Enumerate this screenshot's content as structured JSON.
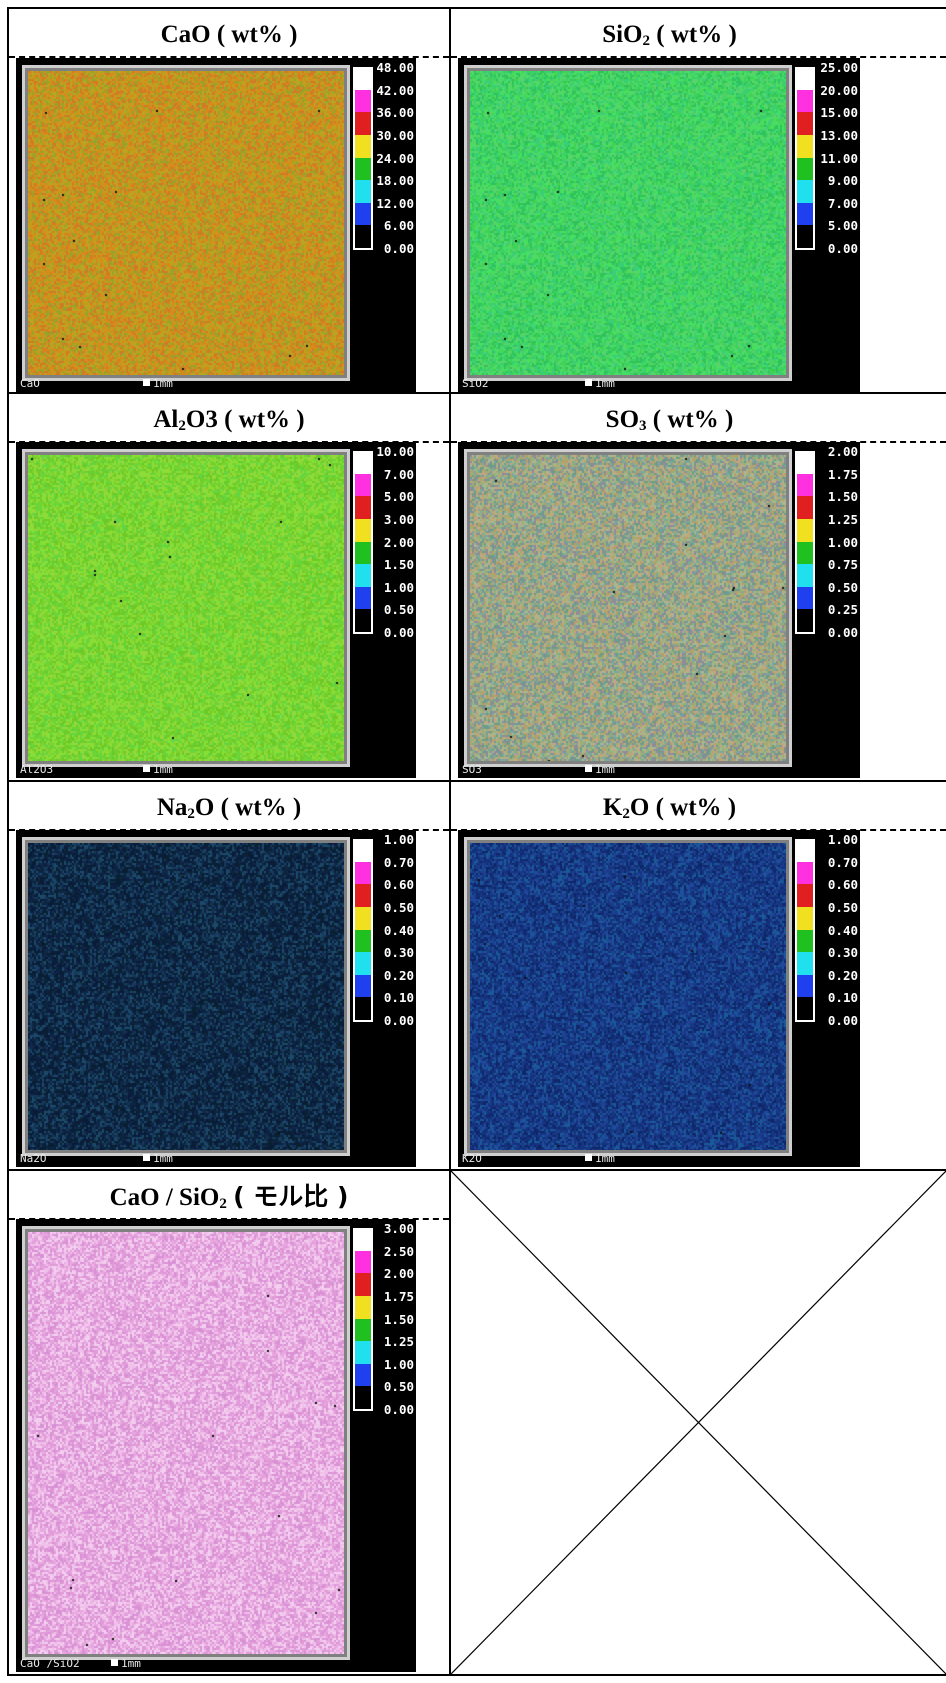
{
  "panels": [
    {
      "title_main": "CaO",
      "title_sub": "",
      "title_tail": "",
      "title_unit": "( wt% )",
      "image_label": "CaO",
      "scale_bar": "1mm",
      "colorbar": [
        "48.00",
        "42.00",
        "36.00",
        "30.00",
        "24.00",
        "18.00",
        "12.00",
        "6.00",
        "0.00"
      ],
      "palette": [
        "#c99a1a",
        "#d8891a",
        "#b8a622",
        "#d07a26",
        "#9aa22a"
      ]
    },
    {
      "title_main": "SiO",
      "title_sub": "2",
      "title_tail": "",
      "title_unit": "( wt% )",
      "image_label": "SiO2",
      "scale_bar": "1mm",
      "colorbar": [
        "25.00",
        "20.00",
        "15.00",
        "13.00",
        "11.00",
        "9.00",
        "7.00",
        "5.00",
        "0.00"
      ],
      "palette": [
        "#3fd256",
        "#46e061",
        "#2fc25b",
        "#5ad469",
        "#39cf7a"
      ]
    },
    {
      "title_main": "Al",
      "title_sub": "2",
      "title_tail": "O3",
      "title_unit": "( wt% )",
      "image_label": "Al2O3",
      "scale_bar": "1mm",
      "colorbar": [
        "10.00",
        "7.00",
        "5.00",
        "3.00",
        "2.00",
        "1.50",
        "1.00",
        "0.50",
        "0.00"
      ],
      "palette": [
        "#7ad22c",
        "#86e034",
        "#6cc926",
        "#95d83c",
        "#62d640"
      ]
    },
    {
      "title_main": "SO",
      "title_sub": "3",
      "title_tail": "",
      "title_unit": "( wt% )",
      "image_label": "SO3",
      "scale_bar": "1mm",
      "colorbar": [
        "2.00",
        "1.75",
        "1.50",
        "1.25",
        "1.00",
        "0.75",
        "0.50",
        "0.25",
        "0.00"
      ],
      "palette": [
        "#9ab07a",
        "#7aa89a",
        "#b5a06a",
        "#6e9a8a",
        "#a8b890",
        "#8c8c9a",
        "#c0a880"
      ]
    },
    {
      "title_main": "Na",
      "title_sub": "2",
      "title_tail": "O",
      "title_unit": "( wt% )",
      "image_label": "Na2O",
      "scale_bar": "1mm",
      "colorbar": [
        "1.00",
        "0.70",
        "0.60",
        "0.50",
        "0.40",
        "0.30",
        "0.20",
        "0.10",
        "0.00"
      ],
      "palette": [
        "#0a1a3a",
        "#10284a",
        "#163a5a",
        "#0c2240",
        "#1c4a6a",
        "#082030"
      ]
    },
    {
      "title_main": "K",
      "title_sub": "2",
      "title_tail": "O",
      "title_unit": "( wt% )",
      "image_label": "K2O",
      "scale_bar": "1mm",
      "colorbar": [
        "1.00",
        "0.70",
        "0.60",
        "0.50",
        "0.40",
        "0.30",
        "0.20",
        "0.10",
        "0.00"
      ],
      "palette": [
        "#12307a",
        "#1a3c8a",
        "#0e2668",
        "#20489a",
        "#163480",
        "#1a5a9a"
      ]
    },
    {
      "title_main": "CaO / SiO",
      "title_sub": "2",
      "title_tail": "",
      "title_unit": "( モル比 )",
      "image_label": "CaO /SiO2",
      "scale_bar": "1mm",
      "colorbar": [
        "3.00",
        "2.50",
        "2.00",
        "1.75",
        "1.50",
        "1.25",
        "1.00",
        "0.50",
        "0.00"
      ],
      "palette": [
        "#e8a8e0",
        "#f0c0ea",
        "#d890d4",
        "#f4d0f0",
        "#e09ad8"
      ]
    }
  ],
  "colorbar_colors": [
    "#ffffff",
    "#ff30e0",
    "#e02020",
    "#f0e020",
    "#20c020",
    "#20e0f0",
    "#2040f0",
    "#000000"
  ]
}
